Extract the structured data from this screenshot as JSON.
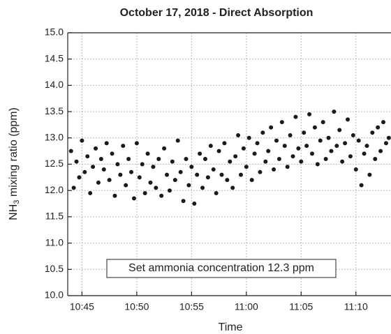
{
  "chart_data": {
    "type": "scatter",
    "title": "October 17, 2018  - Direct Absorption",
    "xlabel": "Time",
    "ylabel": {
      "main": "NH",
      "subscript": "3",
      "rest": " mixing ratio (ppm)"
    },
    "annotation": "Set ammonia concentration 12.3 ppm",
    "color": "#1a1a1a",
    "grid": true,
    "xlim": [
      643.7,
      673.2
    ],
    "ylim": [
      10,
      15
    ],
    "xticks": [
      {
        "value": 645,
        "label": "10:45"
      },
      {
        "value": 650,
        "label": "10:50"
      },
      {
        "value": 655,
        "label": "10:55"
      },
      {
        "value": 660,
        "label": "11:00"
      },
      {
        "value": 665,
        "label": "11:05"
      },
      {
        "value": 670,
        "label": "11:10"
      }
    ],
    "yticks": [
      {
        "value": 10,
        "label": "10.0"
      },
      10.5,
      {
        "value": 11,
        "label": "11.0"
      },
      11.5,
      {
        "value": 12,
        "label": "12.0"
      },
      12.5,
      {
        "value": 13,
        "label": "13.0"
      },
      13.5,
      {
        "value": 14,
        "label": "14.0"
      },
      14.5,
      {
        "value": 15,
        "label": "15.0"
      }
    ],
    "x": [
      644,
      644.25,
      644.5,
      644.75,
      645,
      645.25,
      645.5,
      645.75,
      646,
      646.25,
      646.5,
      646.75,
      647,
      647.25,
      647.5,
      647.75,
      648,
      648.25,
      648.5,
      648.75,
      649,
      649.25,
      649.5,
      649.75,
      650,
      650.25,
      650.5,
      650.75,
      651,
      651.25,
      651.5,
      651.75,
      652,
      652.25,
      652.5,
      652.75,
      653,
      653.25,
      653.5,
      653.75,
      654,
      654.25,
      654.5,
      654.75,
      655,
      655.25,
      655.5,
      655.75,
      656,
      656.25,
      656.5,
      656.75,
      657,
      657.25,
      657.5,
      657.75,
      658,
      658.25,
      658.5,
      658.75,
      659,
      659.25,
      659.5,
      659.75,
      660,
      660.25,
      660.5,
      660.75,
      661,
      661.25,
      661.5,
      661.75,
      662,
      662.25,
      662.5,
      662.75,
      663,
      663.25,
      663.5,
      663.75,
      664,
      664.25,
      664.5,
      664.75,
      665,
      665.25,
      665.5,
      665.75,
      666,
      666.25,
      666.5,
      666.75,
      667,
      667.25,
      667.5,
      667.75,
      668,
      668.25,
      668.5,
      668.75,
      669,
      669.25,
      669.5,
      669.75,
      670,
      670.25,
      670.5,
      670.75,
      671,
      671.25,
      671.5,
      671.75,
      672,
      672.25,
      672.5,
      672.75,
      673
    ],
    "values": [
      12.75,
      12.05,
      12.55,
      12.25,
      12.95,
      12.35,
      12.65,
      11.95,
      12.45,
      12.8,
      12.15,
      12.6,
      12.4,
      12.9,
      12.2,
      12.7,
      11.9,
      12.5,
      12.3,
      12.85,
      12.1,
      12.6,
      12.35,
      11.85,
      12.9,
      12.25,
      12.5,
      11.95,
      12.7,
      12.15,
      12.45,
      12.05,
      12.6,
      11.9,
      12.8,
      12.3,
      12.0,
      12.55,
      12.2,
      12.95,
      12.35,
      11.8,
      12.6,
      12.1,
      12.45,
      11.75,
      12.3,
      12.7,
      12.05,
      12.6,
      12.25,
      12.85,
      12.4,
      11.95,
      12.75,
      12.3,
      12.9,
      12.2,
      12.55,
      12.05,
      12.65,
      13.05,
      12.3,
      12.8,
      12.45,
      13.0,
      12.2,
      12.7,
      12.9,
      12.35,
      13.1,
      12.55,
      12.75,
      13.2,
      12.4,
      12.95,
      12.6,
      13.3,
      12.85,
      12.45,
      13.05,
      12.65,
      13.4,
      12.8,
      12.55,
      13.1,
      12.85,
      13.45,
      12.7,
      13.2,
      12.5,
      12.95,
      13.3,
      12.6,
      13.0,
      12.75,
      13.5,
      12.85,
      13.15,
      12.55,
      12.9,
      13.35,
      12.65,
      13.05,
      12.4,
      12.95,
      12.1,
      12.7,
      12.85,
      12.3,
      13.1,
      12.6,
      13.2,
      12.75,
      13.3,
      12.9,
      13.0
    ]
  }
}
